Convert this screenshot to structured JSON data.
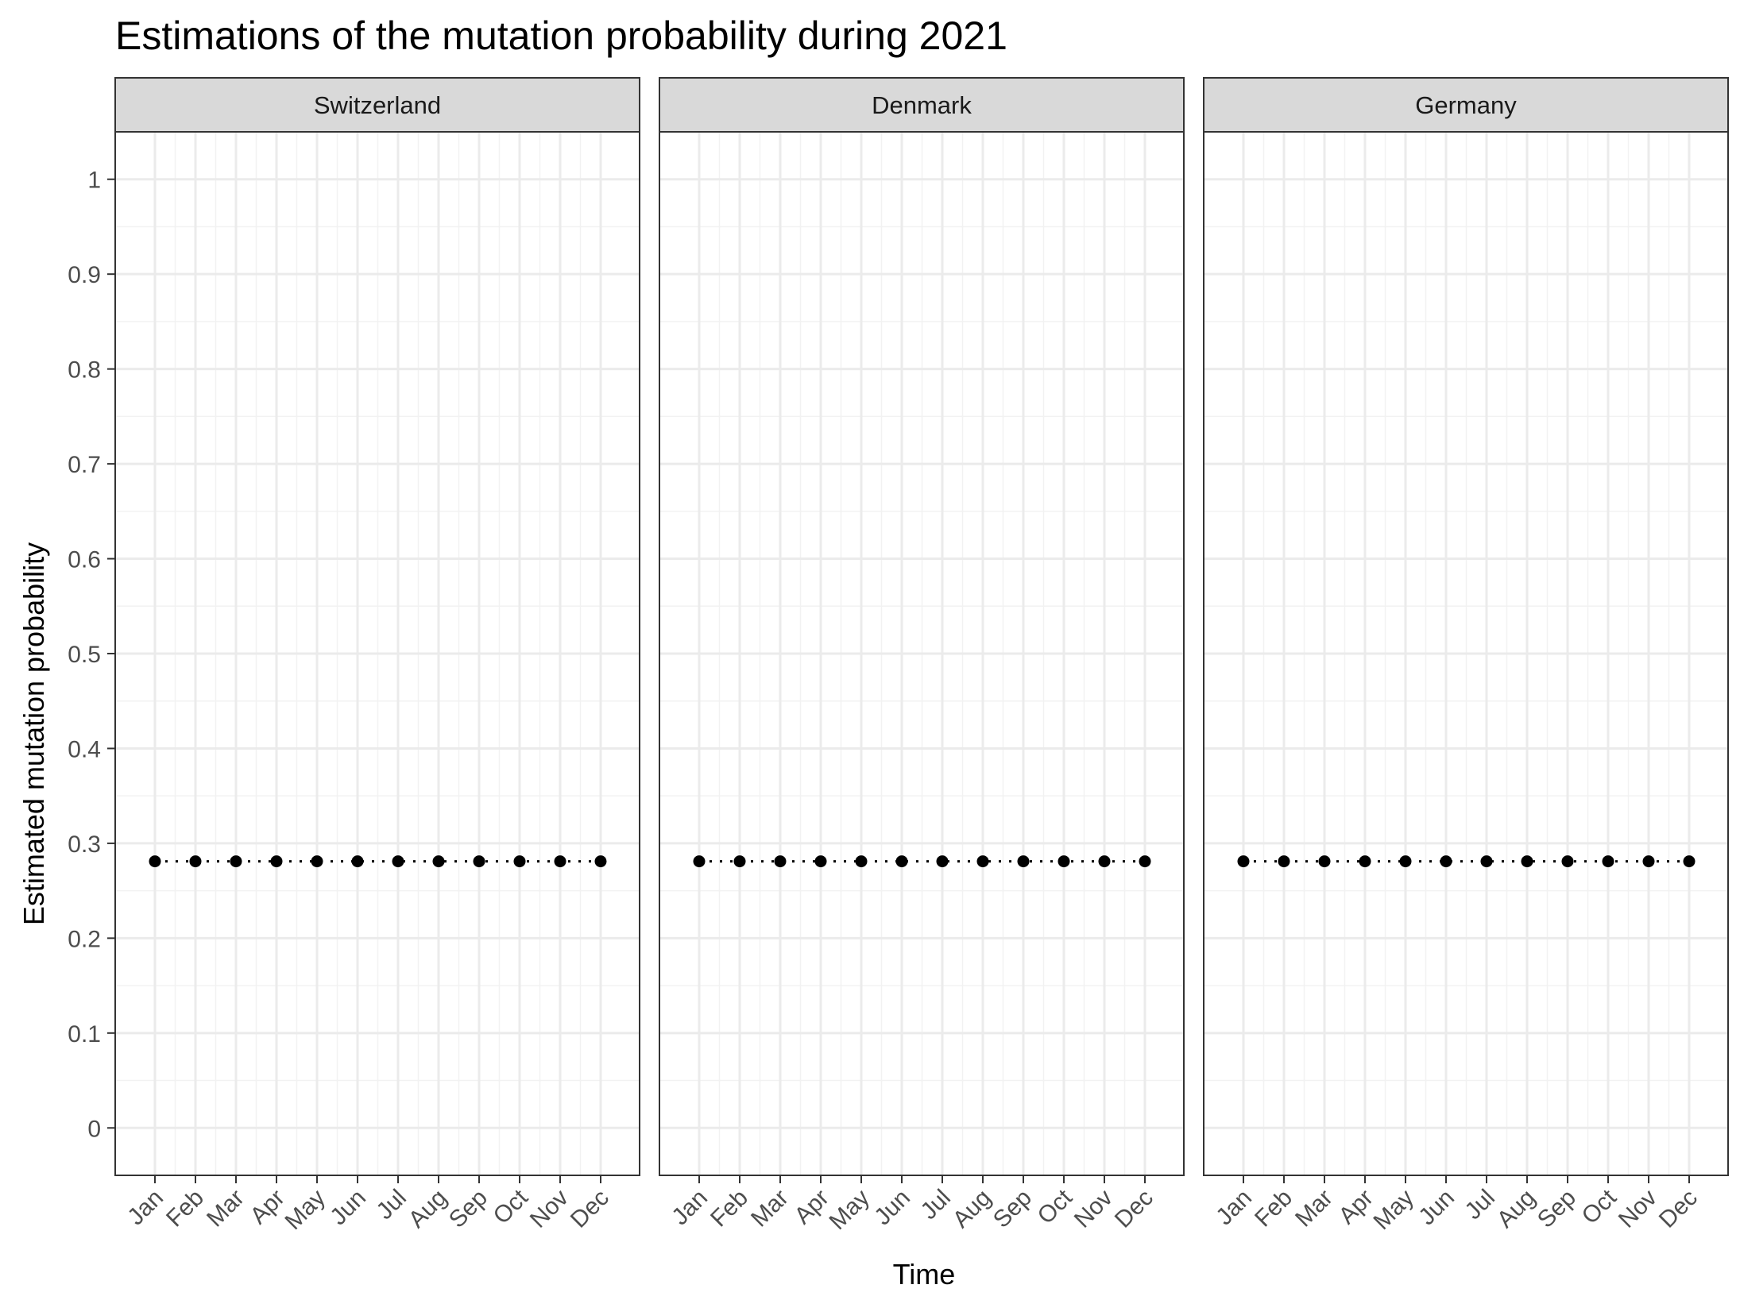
{
  "chart_data": {
    "type": "scatter",
    "title": "Estimations of the mutation probability during 2021",
    "xlabel": "Time",
    "ylabel": "Estimated mutation probability",
    "ylim": [
      -0.05,
      1.05
    ],
    "yticks": [
      0,
      0.1,
      0.2,
      0.3,
      0.4,
      0.5,
      0.6,
      0.7,
      0.8,
      0.9,
      1
    ],
    "ytick_labels": [
      "0",
      "0.1",
      "0.2",
      "0.3",
      "0.4",
      "0.5",
      "0.6",
      "0.7",
      "0.8",
      "0.9",
      "1"
    ],
    "categories": [
      "Jan",
      "Feb",
      "Mar",
      "Apr",
      "May",
      "Jun",
      "Jul",
      "Aug",
      "Sep",
      "Oct",
      "Nov",
      "Dec"
    ],
    "grid": true,
    "connector_line": "dotted",
    "marker_color": "#000000",
    "panels": [
      {
        "name": "Switzerland",
        "values": [
          0.281,
          0.281,
          0.281,
          0.281,
          0.281,
          0.281,
          0.281,
          0.281,
          0.281,
          0.281,
          0.281,
          0.281
        ]
      },
      {
        "name": "Denmark",
        "values": [
          0.281,
          0.281,
          0.281,
          0.281,
          0.281,
          0.281,
          0.281,
          0.281,
          0.281,
          0.281,
          0.281,
          0.281
        ]
      },
      {
        "name": "Germany",
        "values": [
          0.281,
          0.281,
          0.281,
          0.281,
          0.281,
          0.281,
          0.281,
          0.281,
          0.281,
          0.281,
          0.281,
          0.281
        ]
      }
    ]
  }
}
